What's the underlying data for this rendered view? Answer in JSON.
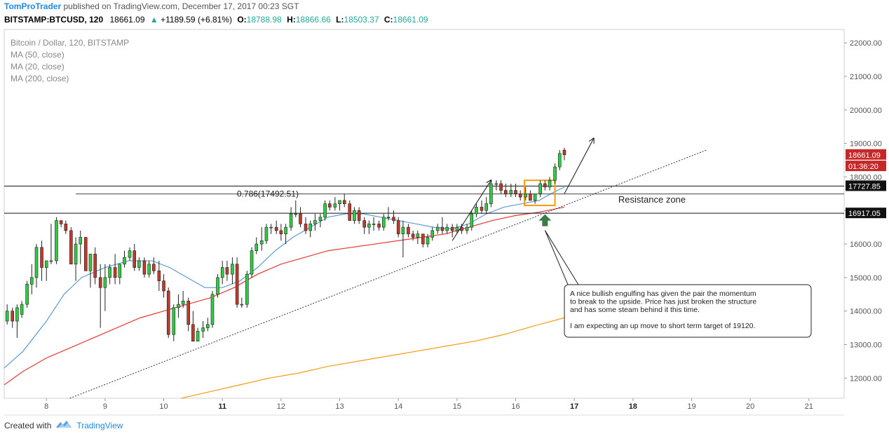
{
  "header": {
    "author": "TomProTrader",
    "published": " published on TradingView.com, December 17, 2017 00:23 SGT"
  },
  "quote": {
    "symbol": "BITSTAMP:BTCUSD, 120",
    "last": "18661.09",
    "change": "+1189.59 (+6.81%)",
    "o_label": "O:",
    "o": "18788.98",
    "h_label": "H:",
    "h": "18866.66",
    "l_label": "L:",
    "l": "18503.37",
    "c_label": "C:",
    "c": "18661.09"
  },
  "legend": {
    "title": "Bitcoin / Dollar, 120, BITSTAMP",
    "items": [
      "MA (50, close)",
      "MA (20, close)",
      "MA (200, close)"
    ]
  },
  "footer": {
    "created_with": "Created with",
    "brand": "TradingView"
  },
  "colors": {
    "bull": "#2ecc40",
    "bear": "#c0392b",
    "ma20": "#5b9bd5",
    "ma50": "#e53935",
    "ma200": "#f39c12",
    "highlight": "#f39c12",
    "arrow_marker": "#3a7d44",
    "price_label_bg": "#c62828",
    "level_label_bg": "#111111"
  },
  "chart_data": {
    "type": "candlestick",
    "title": "Bitcoin / Dollar, 120, BITSTAMP",
    "ylim": [
      11400,
      22400
    ],
    "xlim": [
      7.28,
      21.6
    ],
    "y_ticks": [
      12000,
      13000,
      14000,
      15000,
      16000,
      17000,
      18000,
      19000,
      20000,
      21000,
      22000
    ],
    "y_tick_labels": [
      "12000.00",
      "13000.00",
      "14000.00",
      "15000.00",
      "16000.00",
      "17000.00",
      "18000.00",
      "19000.00",
      "20000.00",
      "21000.00",
      "22000.00"
    ],
    "x_ticks": [
      8,
      9,
      10,
      11,
      12,
      13,
      14,
      15,
      16,
      17,
      18,
      19,
      20,
      21
    ],
    "x_tick_labels": [
      "8",
      "9",
      "10",
      "11",
      "12",
      "13",
      "14",
      "15",
      "16",
      "17",
      "18",
      "19",
      "20",
      "21"
    ],
    "x_tick_bold": [
      false,
      false,
      false,
      true,
      false,
      false,
      false,
      false,
      false,
      true,
      true,
      false,
      false,
      false
    ],
    "grid": false,
    "candles": [
      {
        "x": 7.33,
        "o": 13700,
        "h": 14200,
        "l": 13600,
        "c": 14000
      },
      {
        "x": 7.42,
        "o": 14000,
        "h": 14100,
        "l": 13500,
        "c": 13700
      },
      {
        "x": 7.5,
        "o": 13700,
        "h": 14200,
        "l": 13200,
        "c": 14100
      },
      {
        "x": 7.58,
        "o": 13900,
        "h": 14300,
        "l": 13800,
        "c": 14200
      },
      {
        "x": 7.67,
        "o": 14200,
        "h": 14900,
        "l": 14100,
        "c": 14800
      },
      {
        "x": 7.75,
        "o": 14800,
        "h": 15400,
        "l": 14500,
        "c": 15000
      },
      {
        "x": 7.83,
        "o": 15000,
        "h": 16000,
        "l": 14700,
        "c": 15900
      },
      {
        "x": 7.92,
        "o": 15900,
        "h": 16100,
        "l": 14900,
        "c": 15300
      },
      {
        "x": 8.0,
        "o": 15300,
        "h": 15500,
        "l": 14900,
        "c": 15500
      },
      {
        "x": 8.08,
        "o": 15500,
        "h": 16600,
        "l": 15400,
        "c": 15500
      },
      {
        "x": 8.17,
        "o": 15500,
        "h": 16800,
        "l": 15400,
        "c": 16700
      },
      {
        "x": 8.25,
        "o": 16700,
        "h": 16700,
        "l": 16500,
        "c": 16600
      },
      {
        "x": 8.33,
        "o": 16600,
        "h": 16700,
        "l": 16300,
        "c": 16400
      },
      {
        "x": 8.42,
        "o": 16400,
        "h": 16500,
        "l": 15400,
        "c": 15400
      },
      {
        "x": 8.5,
        "o": 15400,
        "h": 16200,
        "l": 14900,
        "c": 16000
      },
      {
        "x": 8.58,
        "o": 16000,
        "h": 16400,
        "l": 15400,
        "c": 16200
      },
      {
        "x": 8.67,
        "o": 16200,
        "h": 16200,
        "l": 15200,
        "c": 15200
      },
      {
        "x": 8.75,
        "o": 15200,
        "h": 15700,
        "l": 14700,
        "c": 15700
      },
      {
        "x": 8.83,
        "o": 15700,
        "h": 15900,
        "l": 14800,
        "c": 15000
      },
      {
        "x": 8.92,
        "o": 15000,
        "h": 15400,
        "l": 13500,
        "c": 14700
      },
      {
        "x": 9.0,
        "o": 14700,
        "h": 15400,
        "l": 14000,
        "c": 15000
      },
      {
        "x": 9.08,
        "o": 15000,
        "h": 15400,
        "l": 14800,
        "c": 15300
      },
      {
        "x": 9.17,
        "o": 15300,
        "h": 15700,
        "l": 14800,
        "c": 15000
      },
      {
        "x": 9.25,
        "o": 15000,
        "h": 15400,
        "l": 14800,
        "c": 15400
      },
      {
        "x": 9.33,
        "o": 15400,
        "h": 15800,
        "l": 15300,
        "c": 15600
      },
      {
        "x": 9.42,
        "o": 15600,
        "h": 15900,
        "l": 15500,
        "c": 15800
      },
      {
        "x": 9.5,
        "o": 15800,
        "h": 16000,
        "l": 15200,
        "c": 15300
      },
      {
        "x": 9.58,
        "o": 15300,
        "h": 15600,
        "l": 15200,
        "c": 15500
      },
      {
        "x": 9.67,
        "o": 15500,
        "h": 15600,
        "l": 15000,
        "c": 15100
      },
      {
        "x": 9.75,
        "o": 15100,
        "h": 15500,
        "l": 15000,
        "c": 15400
      },
      {
        "x": 9.83,
        "o": 15400,
        "h": 15600,
        "l": 15100,
        "c": 15200
      },
      {
        "x": 9.92,
        "o": 15200,
        "h": 15500,
        "l": 14600,
        "c": 14900
      },
      {
        "x": 10.0,
        "o": 14900,
        "h": 15100,
        "l": 14400,
        "c": 14600
      },
      {
        "x": 10.08,
        "o": 14600,
        "h": 14700,
        "l": 13200,
        "c": 13300
      },
      {
        "x": 10.17,
        "o": 13300,
        "h": 14200,
        "l": 13100,
        "c": 14100
      },
      {
        "x": 10.25,
        "o": 14100,
        "h": 14500,
        "l": 13800,
        "c": 14200
      },
      {
        "x": 10.33,
        "o": 14200,
        "h": 14600,
        "l": 14100,
        "c": 14300
      },
      {
        "x": 10.42,
        "o": 14300,
        "h": 14400,
        "l": 13400,
        "c": 13600
      },
      {
        "x": 10.5,
        "o": 13600,
        "h": 14000,
        "l": 13100,
        "c": 13100
      },
      {
        "x": 10.58,
        "o": 13100,
        "h": 13500,
        "l": 13100,
        "c": 13400
      },
      {
        "x": 10.67,
        "o": 13400,
        "h": 13700,
        "l": 13200,
        "c": 13500
      },
      {
        "x": 10.75,
        "o": 13500,
        "h": 13800,
        "l": 13400,
        "c": 13600
      },
      {
        "x": 10.83,
        "o": 13600,
        "h": 14600,
        "l": 13500,
        "c": 14500
      },
      {
        "x": 10.92,
        "o": 14500,
        "h": 15100,
        "l": 14400,
        "c": 15000
      },
      {
        "x": 11.0,
        "o": 15000,
        "h": 15500,
        "l": 14800,
        "c": 15300
      },
      {
        "x": 11.08,
        "o": 15300,
        "h": 15500,
        "l": 14900,
        "c": 15100
      },
      {
        "x": 11.17,
        "o": 15100,
        "h": 15600,
        "l": 14800,
        "c": 15400
      },
      {
        "x": 11.25,
        "o": 15400,
        "h": 15600,
        "l": 14100,
        "c": 14200
      },
      {
        "x": 11.33,
        "o": 14200,
        "h": 14400,
        "l": 14100,
        "c": 14200
      },
      {
        "x": 11.42,
        "o": 14200,
        "h": 15200,
        "l": 14100,
        "c": 15100
      },
      {
        "x": 11.5,
        "o": 15100,
        "h": 15900,
        "l": 15000,
        "c": 15800
      },
      {
        "x": 11.58,
        "o": 15800,
        "h": 16200,
        "l": 15700,
        "c": 16000
      },
      {
        "x": 11.67,
        "o": 16000,
        "h": 16500,
        "l": 15800,
        "c": 16100
      },
      {
        "x": 11.75,
        "o": 16100,
        "h": 16600,
        "l": 16000,
        "c": 16500
      },
      {
        "x": 11.83,
        "o": 16500,
        "h": 16600,
        "l": 16300,
        "c": 16500
      },
      {
        "x": 11.92,
        "o": 16500,
        "h": 16700,
        "l": 16300,
        "c": 16400
      },
      {
        "x": 12.0,
        "o": 16400,
        "h": 16600,
        "l": 16100,
        "c": 16300
      },
      {
        "x": 12.08,
        "o": 16300,
        "h": 16600,
        "l": 16000,
        "c": 16500
      },
      {
        "x": 12.17,
        "o": 16500,
        "h": 17100,
        "l": 16400,
        "c": 16900
      },
      {
        "x": 12.25,
        "o": 16900,
        "h": 17300,
        "l": 16800,
        "c": 16900
      },
      {
        "x": 12.33,
        "o": 16900,
        "h": 17100,
        "l": 16500,
        "c": 16600
      },
      {
        "x": 12.42,
        "o": 16600,
        "h": 16800,
        "l": 16300,
        "c": 16400
      },
      {
        "x": 12.5,
        "o": 16400,
        "h": 16700,
        "l": 16200,
        "c": 16600
      },
      {
        "x": 12.58,
        "o": 16600,
        "h": 16900,
        "l": 16400,
        "c": 16700
      },
      {
        "x": 12.67,
        "o": 16700,
        "h": 16900,
        "l": 16500,
        "c": 16800
      },
      {
        "x": 12.75,
        "o": 16800,
        "h": 17300,
        "l": 16700,
        "c": 17200
      },
      {
        "x": 12.83,
        "o": 17200,
        "h": 17300,
        "l": 17000,
        "c": 17100
      },
      {
        "x": 12.92,
        "o": 17100,
        "h": 17400,
        "l": 17000,
        "c": 17200
      },
      {
        "x": 13.0,
        "o": 17200,
        "h": 17300,
        "l": 17000,
        "c": 17300
      },
      {
        "x": 13.08,
        "o": 17300,
        "h": 17500,
        "l": 17100,
        "c": 17200
      },
      {
        "x": 13.17,
        "o": 17200,
        "h": 17300,
        "l": 16700,
        "c": 16700
      },
      {
        "x": 13.25,
        "o": 16700,
        "h": 17100,
        "l": 16600,
        "c": 17000
      },
      {
        "x": 13.33,
        "o": 17000,
        "h": 17100,
        "l": 16600,
        "c": 16700
      },
      {
        "x": 13.42,
        "o": 16700,
        "h": 16800,
        "l": 16300,
        "c": 16500
      },
      {
        "x": 13.5,
        "o": 16500,
        "h": 16700,
        "l": 16300,
        "c": 16600
      },
      {
        "x": 13.58,
        "o": 16600,
        "h": 16800,
        "l": 16400,
        "c": 16600
      },
      {
        "x": 13.67,
        "o": 16600,
        "h": 16700,
        "l": 16400,
        "c": 16500
      },
      {
        "x": 13.75,
        "o": 16500,
        "h": 16900,
        "l": 16400,
        "c": 16800
      },
      {
        "x": 13.83,
        "o": 16800,
        "h": 17100,
        "l": 16700,
        "c": 16800
      },
      {
        "x": 13.92,
        "o": 16800,
        "h": 17000,
        "l": 16600,
        "c": 16700
      },
      {
        "x": 14.0,
        "o": 16700,
        "h": 16800,
        "l": 16200,
        "c": 16300
      },
      {
        "x": 14.08,
        "o": 16300,
        "h": 16700,
        "l": 15600,
        "c": 16500
      },
      {
        "x": 14.17,
        "o": 16500,
        "h": 16600,
        "l": 16200,
        "c": 16300
      },
      {
        "x": 14.25,
        "o": 16300,
        "h": 16400,
        "l": 16100,
        "c": 16200
      },
      {
        "x": 14.33,
        "o": 16200,
        "h": 16400,
        "l": 16000,
        "c": 16300
      },
      {
        "x": 14.42,
        "o": 16300,
        "h": 16300,
        "l": 15900,
        "c": 16000
      },
      {
        "x": 14.5,
        "o": 16000,
        "h": 16300,
        "l": 15900,
        "c": 16200
      },
      {
        "x": 14.58,
        "o": 16200,
        "h": 16500,
        "l": 16100,
        "c": 16400
      },
      {
        "x": 14.67,
        "o": 16400,
        "h": 16600,
        "l": 16300,
        "c": 16500
      },
      {
        "x": 14.75,
        "o": 16500,
        "h": 16800,
        "l": 16300,
        "c": 16400
      },
      {
        "x": 14.83,
        "o": 16400,
        "h": 16600,
        "l": 16300,
        "c": 16500
      },
      {
        "x": 14.92,
        "o": 16500,
        "h": 16600,
        "l": 16200,
        "c": 16400
      },
      {
        "x": 15.0,
        "o": 16400,
        "h": 16600,
        "l": 16300,
        "c": 16500
      },
      {
        "x": 15.08,
        "o": 16500,
        "h": 16600,
        "l": 16300,
        "c": 16400
      },
      {
        "x": 15.17,
        "o": 16400,
        "h": 16600,
        "l": 16300,
        "c": 16500
      },
      {
        "x": 15.25,
        "o": 16500,
        "h": 17000,
        "l": 16400,
        "c": 16900
      },
      {
        "x": 15.33,
        "o": 16900,
        "h": 17200,
        "l": 16800,
        "c": 17100
      },
      {
        "x": 15.42,
        "o": 17100,
        "h": 17300,
        "l": 16900,
        "c": 17000
      },
      {
        "x": 15.5,
        "o": 17000,
        "h": 17400,
        "l": 16900,
        "c": 17200
      },
      {
        "x": 15.58,
        "o": 17200,
        "h": 17900,
        "l": 17100,
        "c": 17800
      },
      {
        "x": 15.67,
        "o": 17800,
        "h": 17900,
        "l": 17600,
        "c": 17800
      },
      {
        "x": 15.75,
        "o": 17800,
        "h": 17900,
        "l": 17500,
        "c": 17600
      },
      {
        "x": 15.83,
        "o": 17600,
        "h": 17800,
        "l": 17400,
        "c": 17500
      },
      {
        "x": 15.92,
        "o": 17500,
        "h": 17800,
        "l": 17400,
        "c": 17600
      },
      {
        "x": 16.0,
        "o": 17600,
        "h": 17800,
        "l": 17400,
        "c": 17500
      },
      {
        "x": 16.08,
        "o": 17500,
        "h": 17600,
        "l": 17300,
        "c": 17400
      },
      {
        "x": 16.17,
        "o": 17400,
        "h": 17700,
        "l": 17300,
        "c": 17500
      },
      {
        "x": 16.25,
        "o": 17500,
        "h": 17600,
        "l": 17300,
        "c": 17300
      },
      {
        "x": 16.33,
        "o": 17300,
        "h": 17500,
        "l": 17200,
        "c": 17500
      },
      {
        "x": 16.42,
        "o": 17500,
        "h": 17900,
        "l": 17400,
        "c": 17800
      },
      {
        "x": 16.5,
        "o": 17800,
        "h": 17900,
        "l": 17600,
        "c": 17700
      },
      {
        "x": 16.58,
        "o": 17700,
        "h": 18000,
        "l": 17600,
        "c": 17900
      },
      {
        "x": 16.67,
        "o": 17900,
        "h": 18400,
        "l": 17800,
        "c": 18300
      },
      {
        "x": 16.75,
        "o": 18300,
        "h": 18800,
        "l": 18200,
        "c": 18700
      },
      {
        "x": 16.83,
        "o": 18800,
        "h": 18870,
        "l": 18500,
        "c": 18661
      }
    ],
    "ma20": [
      [
        7.28,
        12300
      ],
      [
        7.6,
        12800
      ],
      [
        8.0,
        13700
      ],
      [
        8.3,
        14500
      ],
      [
        8.6,
        15000
      ],
      [
        9.0,
        15300
      ],
      [
        9.4,
        15500
      ],
      [
        9.8,
        15500
      ],
      [
        10.1,
        15300
      ],
      [
        10.4,
        15000
      ],
      [
        10.7,
        14700
      ],
      [
        11.0,
        14700
      ],
      [
        11.3,
        14900
      ],
      [
        11.6,
        15300
      ],
      [
        11.9,
        15800
      ],
      [
        12.2,
        16200
      ],
      [
        12.5,
        16500
      ],
      [
        12.8,
        16800
      ],
      [
        13.1,
        16900
      ],
      [
        13.4,
        16900
      ],
      [
        13.7,
        16800
      ],
      [
        14.0,
        16700
      ],
      [
        14.3,
        16600
      ],
      [
        14.6,
        16500
      ],
      [
        14.9,
        16450
      ],
      [
        15.2,
        16600
      ],
      [
        15.5,
        16900
      ],
      [
        15.8,
        17100
      ],
      [
        16.1,
        17200
      ],
      [
        16.4,
        17300
      ],
      [
        16.6,
        17500
      ],
      [
        16.83,
        17700
      ]
    ],
    "ma50": [
      [
        7.28,
        11800
      ],
      [
        7.6,
        12200
      ],
      [
        8.0,
        12600
      ],
      [
        8.4,
        12900
      ],
      [
        8.8,
        13200
      ],
      [
        9.2,
        13500
      ],
      [
        9.6,
        13800
      ],
      [
        10.0,
        14000
      ],
      [
        10.4,
        14200
      ],
      [
        10.8,
        14400
      ],
      [
        11.2,
        14700
      ],
      [
        11.6,
        15100
      ],
      [
        12.0,
        15400
      ],
      [
        12.4,
        15600
      ],
      [
        12.8,
        15800
      ],
      [
        13.2,
        15900
      ],
      [
        13.6,
        16000
      ],
      [
        14.0,
        16100
      ],
      [
        14.4,
        16200
      ],
      [
        14.8,
        16300
      ],
      [
        15.2,
        16500
      ],
      [
        15.6,
        16700
      ],
      [
        16.0,
        16850
      ],
      [
        16.4,
        16950
      ],
      [
        16.83,
        17100
      ]
    ],
    "ma200": [
      [
        10.3,
        11400
      ],
      [
        10.8,
        11600
      ],
      [
        11.3,
        11800
      ],
      [
        11.8,
        12000
      ],
      [
        12.3,
        12150
      ],
      [
        12.8,
        12350
      ],
      [
        13.3,
        12500
      ],
      [
        13.8,
        12650
      ],
      [
        14.3,
        12800
      ],
      [
        14.8,
        12950
      ],
      [
        15.3,
        13100
      ],
      [
        15.8,
        13300
      ],
      [
        16.3,
        13550
      ],
      [
        16.83,
        13800
      ]
    ],
    "resistance_lines": [
      17727.85,
      16917.05
    ],
    "resistance_labels": [
      "17727.85",
      "16917.05"
    ],
    "price_label": "18661.09",
    "countdown_label": "01:36:20",
    "fib_level": 17492.51,
    "fib_label": "0.786(17492.51)",
    "resistance_zone_label": "Resistance zone",
    "trendline": {
      "x1": 8.4,
      "y1": 11400,
      "x2": 19.25,
      "y2": 18800
    },
    "engulfing_box": {
      "x1": 16.15,
      "x2": 16.67,
      "y1": 17150,
      "y2": 17900
    },
    "arrows": [
      {
        "x1": 14.92,
        "y1": 16100,
        "x2": 15.58,
        "y2": 17900
      },
      {
        "x1": 16.83,
        "y1": 17500,
        "x2": 17.33,
        "y2": 19150
      }
    ],
    "marker_up_arrow": {
      "x": 16.5,
      "y": 16700
    },
    "annotation": {
      "lines": [
        "A nice bullish engulfing has given the pair the momentum",
        "to break to the upside. Price has just broken the structure",
        "and has some steam behind it this time.",
        "",
        "I am expecting an up move to short term target of 19120."
      ]
    }
  }
}
